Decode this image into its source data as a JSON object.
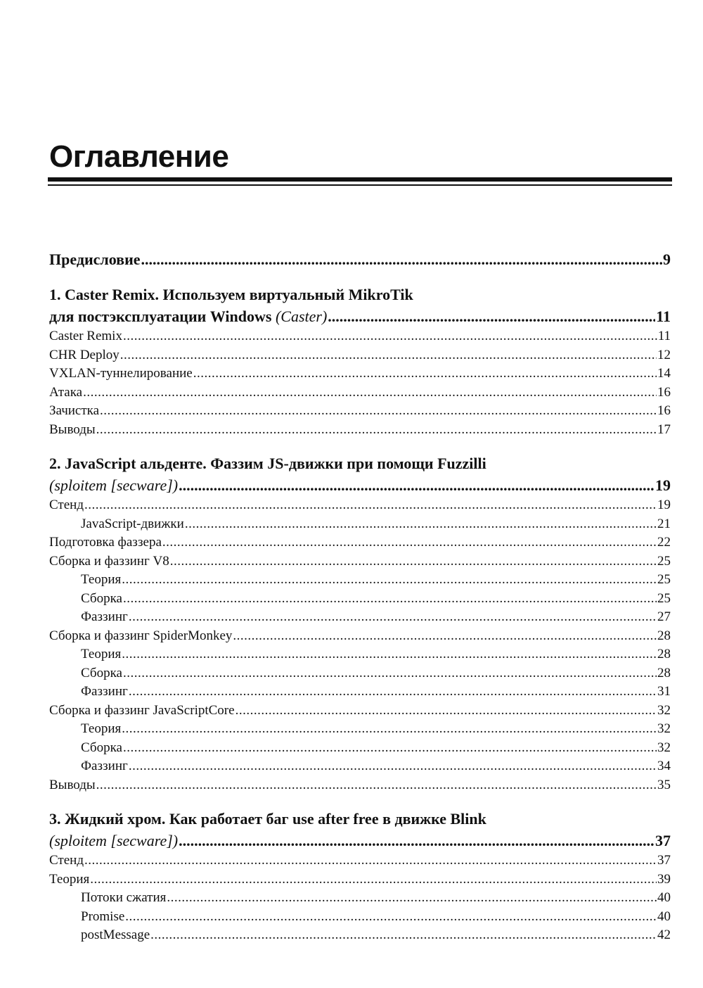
{
  "title": "Оглавление",
  "preface": {
    "label": "Предисловие",
    "page": "9"
  },
  "chapters": [
    {
      "line1": "1. Caster Remix. Используем виртуальный MikroTik",
      "line2": "для постэксплуатации Windows",
      "author": "(Caster)",
      "page": "11",
      "sections": [
        {
          "label": "Caster Remix",
          "page": "11",
          "level": 1
        },
        {
          "label": "CHR Deploy",
          "page": "12",
          "level": 1
        },
        {
          "label": "VXLAN-туннелирование",
          "page": "14",
          "level": 1
        },
        {
          "label": "Атака",
          "page": "16",
          "level": 1
        },
        {
          "label": "Зачистка",
          "page": "16",
          "level": 1
        },
        {
          "label": "Выводы",
          "page": "17",
          "level": 1
        }
      ]
    },
    {
      "line1": "2. JavaScript альденте. Фаззим JS-движки при помощи Fuzzilli",
      "line2": "",
      "author": "(sploitem [secware])",
      "page": "19",
      "sections": [
        {
          "label": "Стенд",
          "page": "19",
          "level": 1
        },
        {
          "label": "JavaScript-движки",
          "page": "21",
          "level": 2
        },
        {
          "label": "Подготовка фаззера",
          "page": "22",
          "level": 1
        },
        {
          "label": "Сборка и фаззинг V8",
          "page": "25",
          "level": 1
        },
        {
          "label": "Теория",
          "page": "25",
          "level": 2
        },
        {
          "label": "Сборка",
          "page": "25",
          "level": 2
        },
        {
          "label": "Фаззинг",
          "page": "27",
          "level": 2
        },
        {
          "label": "Сборка и фаззинг SpiderMonkey",
          "page": "28",
          "level": 1
        },
        {
          "label": "Теория",
          "page": "28",
          "level": 2
        },
        {
          "label": "Сборка",
          "page": "28",
          "level": 2
        },
        {
          "label": "Фаззинг",
          "page": "31",
          "level": 2
        },
        {
          "label": "Сборка и фаззинг JavaScriptCore",
          "page": "32",
          "level": 1
        },
        {
          "label": "Теория",
          "page": "32",
          "level": 2
        },
        {
          "label": "Сборка",
          "page": "32",
          "level": 2
        },
        {
          "label": "Фаззинг",
          "page": "34",
          "level": 2
        },
        {
          "label": "Выводы",
          "page": "35",
          "level": 1
        }
      ]
    },
    {
      "line1": "3. Жидкий хром. Как работает баг use after free в движке Blink",
      "line2": "",
      "author": "(sploitem [secware])",
      "page": "37",
      "sections": [
        {
          "label": "Стенд",
          "page": "37",
          "level": 1
        },
        {
          "label": "Теория",
          "page": "39",
          "level": 1
        },
        {
          "label": "Потоки сжатия",
          "page": "40",
          "level": 2
        },
        {
          "label": "Promise",
          "page": "40",
          "level": 2
        },
        {
          "label": "postMessage",
          "page": "42",
          "level": 2
        }
      ]
    }
  ]
}
